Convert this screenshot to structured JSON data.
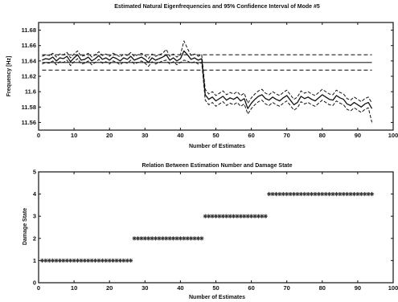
{
  "chart_data": [
    {
      "type": "line",
      "title": "Estimated Natural Eigenfrequencies and 95% Confidence Interval of Mode #5",
      "xlabel": "Number of Estimates",
      "ylabel": "Frequency [Hz]",
      "xlim": [
        0,
        100
      ],
      "ylim": [
        11.55,
        11.69
      ],
      "xticks": [
        "0",
        "10",
        "20",
        "30",
        "40",
        "50",
        "60",
        "70",
        "80",
        "90",
        "100"
      ],
      "yticks": [
        "11.56",
        "11.58",
        "11.6",
        "11.62",
        "11.64",
        "11.66",
        "11.68"
      ],
      "grid": false,
      "legend": "none",
      "x": [
        1,
        2,
        3,
        4,
        5,
        6,
        7,
        8,
        9,
        10,
        11,
        12,
        13,
        14,
        15,
        16,
        17,
        18,
        19,
        20,
        21,
        22,
        23,
        24,
        25,
        26,
        27,
        28,
        29,
        30,
        31,
        32,
        33,
        34,
        35,
        36,
        37,
        38,
        39,
        40,
        41,
        42,
        43,
        44,
        45,
        46,
        47,
        48,
        49,
        50,
        51,
        52,
        53,
        54,
        55,
        56,
        57,
        58,
        59,
        60,
        61,
        62,
        63,
        64,
        65,
        66,
        67,
        68,
        69,
        70,
        71,
        72,
        73,
        74,
        75,
        76,
        77,
        78,
        79,
        80,
        81,
        82,
        83,
        84,
        85,
        86,
        87,
        88,
        89,
        90,
        91,
        92,
        93,
        94
      ],
      "series": [
        {
          "name": "",
          "style": "solid",
          "values": [
            11.641,
            11.643,
            11.642,
            11.645,
            11.64,
            11.644,
            11.643,
            11.646,
            11.639,
            11.644,
            11.648,
            11.641,
            11.642,
            11.645,
            11.64,
            11.643,
            11.647,
            11.642,
            11.644,
            11.641,
            11.645,
            11.643,
            11.64,
            11.644,
            11.642,
            11.646,
            11.641,
            11.643,
            11.645,
            11.642,
            11.638,
            11.644,
            11.641,
            11.643,
            11.645,
            11.648,
            11.641,
            11.644,
            11.64,
            11.643,
            11.653,
            11.648,
            11.642,
            11.644,
            11.641,
            11.643,
            11.596,
            11.59,
            11.593,
            11.588,
            11.591,
            11.594,
            11.589,
            11.592,
            11.59,
            11.593,
            11.588,
            11.591,
            11.578,
            11.585,
            11.59,
            11.594,
            11.596,
            11.591,
            11.589,
            11.593,
            11.59,
            11.588,
            11.592,
            11.595,
            11.589,
            11.583,
            11.586,
            11.594,
            11.591,
            11.593,
            11.59,
            11.588,
            11.592,
            11.596,
            11.593,
            11.59,
            11.589,
            11.595,
            11.592,
            11.59,
            11.584,
            11.582,
            11.586,
            11.583,
            11.58,
            11.584,
            11.586,
            11.578
          ]
        },
        {
          "name": "",
          "style": "dashed",
          "values": [
            11.646,
            11.648,
            11.647,
            11.65,
            11.645,
            11.649,
            11.648,
            11.651,
            11.644,
            11.649,
            11.653,
            11.646,
            11.647,
            11.65,
            11.645,
            11.648,
            11.652,
            11.647,
            11.649,
            11.646,
            11.65,
            11.648,
            11.645,
            11.649,
            11.647,
            11.651,
            11.646,
            11.648,
            11.65,
            11.647,
            11.643,
            11.649,
            11.646,
            11.648,
            11.65,
            11.655,
            11.646,
            11.649,
            11.645,
            11.648,
            11.666,
            11.656,
            11.647,
            11.649,
            11.646,
            11.648,
            11.603,
            11.597,
            11.6,
            11.595,
            11.598,
            11.601,
            11.596,
            11.599,
            11.597,
            11.6,
            11.595,
            11.598,
            11.585,
            11.592,
            11.597,
            11.601,
            11.603,
            11.598,
            11.596,
            11.6,
            11.597,
            11.595,
            11.599,
            11.602,
            11.596,
            11.59,
            11.593,
            11.601,
            11.598,
            11.6,
            11.597,
            11.595,
            11.599,
            11.603,
            11.6,
            11.597,
            11.596,
            11.602,
            11.599,
            11.597,
            11.591,
            11.589,
            11.593,
            11.59,
            11.587,
            11.591,
            11.593,
            11.585
          ]
        },
        {
          "name": "",
          "style": "dashed",
          "values": [
            11.636,
            11.638,
            11.637,
            11.64,
            11.635,
            11.639,
            11.638,
            11.641,
            11.634,
            11.639,
            11.643,
            11.636,
            11.637,
            11.64,
            11.635,
            11.638,
            11.642,
            11.637,
            11.639,
            11.636,
            11.64,
            11.638,
            11.635,
            11.639,
            11.637,
            11.641,
            11.636,
            11.638,
            11.64,
            11.637,
            11.633,
            11.639,
            11.636,
            11.638,
            11.64,
            11.641,
            11.636,
            11.639,
            11.635,
            11.638,
            11.641,
            11.64,
            11.637,
            11.639,
            11.636,
            11.638,
            11.589,
            11.583,
            11.586,
            11.581,
            11.584,
            11.587,
            11.582,
            11.585,
            11.583,
            11.586,
            11.581,
            11.584,
            11.571,
            11.578,
            11.583,
            11.587,
            11.589,
            11.584,
            11.582,
            11.586,
            11.583,
            11.581,
            11.585,
            11.588,
            11.582,
            11.576,
            11.579,
            11.587,
            11.584,
            11.586,
            11.583,
            11.581,
            11.585,
            11.589,
            11.586,
            11.583,
            11.582,
            11.588,
            11.585,
            11.583,
            11.577,
            11.575,
            11.579,
            11.576,
            11.573,
            11.577,
            11.579,
            11.56
          ]
        }
      ],
      "reference_lines": [
        {
          "style": "solid",
          "value": 11.638
        },
        {
          "style": "dashed",
          "value": 11.648
        },
        {
          "style": "dashed",
          "value": 11.628
        }
      ]
    },
    {
      "type": "scatter",
      "title": "Relation Between Estimation Number and Damage State",
      "xlabel": "Number of Estimates",
      "ylabel": "Damage State",
      "xlim": [
        0,
        100
      ],
      "ylim": [
        0,
        5
      ],
      "xticks": [
        "0",
        "10",
        "20",
        "30",
        "40",
        "50",
        "60",
        "70",
        "80",
        "90",
        "100"
      ],
      "yticks": [
        "0",
        "1",
        "2",
        "3",
        "4",
        "5"
      ],
      "grid": false,
      "legend": "none",
      "marker": "asterisk",
      "segments": [
        {
          "x_start": 1,
          "x_end": 26,
          "value": 1
        },
        {
          "x_start": 27,
          "x_end": 46,
          "value": 2
        },
        {
          "x_start": 47,
          "x_end": 64,
          "value": 3
        },
        {
          "x_start": 65,
          "x_end": 94,
          "value": 4
        }
      ]
    }
  ]
}
